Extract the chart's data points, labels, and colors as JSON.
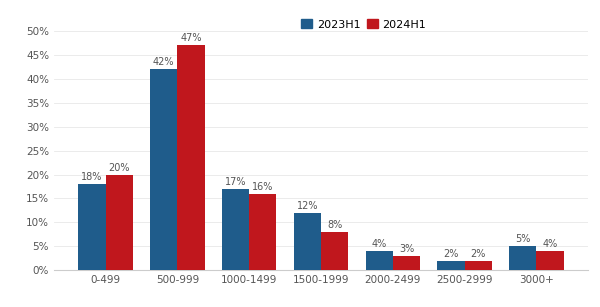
{
  "categories": [
    "0-499",
    "500-999",
    "1000-1499",
    "1500-1999",
    "2000-2499",
    "2500-2999",
    "3000+"
  ],
  "series_2023": [
    18,
    42,
    17,
    12,
    4,
    2,
    5
  ],
  "series_2024": [
    20,
    47,
    16,
    8,
    3,
    2,
    4
  ],
  "color_2023": "#1f5c8b",
  "color_2024": "#c0171d",
  "legend_labels": [
    "2023H1",
    "2024H1"
  ],
  "ylim": [
    0,
    52
  ],
  "yticks": [
    0,
    5,
    10,
    15,
    20,
    25,
    30,
    35,
    40,
    45,
    50
  ],
  "background_color": "#ffffff",
  "bar_width": 0.38,
  "label_fontsize": 7.0,
  "tick_fontsize": 7.5,
  "legend_fontsize": 8.0,
  "label_color": "#555555",
  "axis_color": "#cccccc",
  "grid_color": "#e8e8e8"
}
